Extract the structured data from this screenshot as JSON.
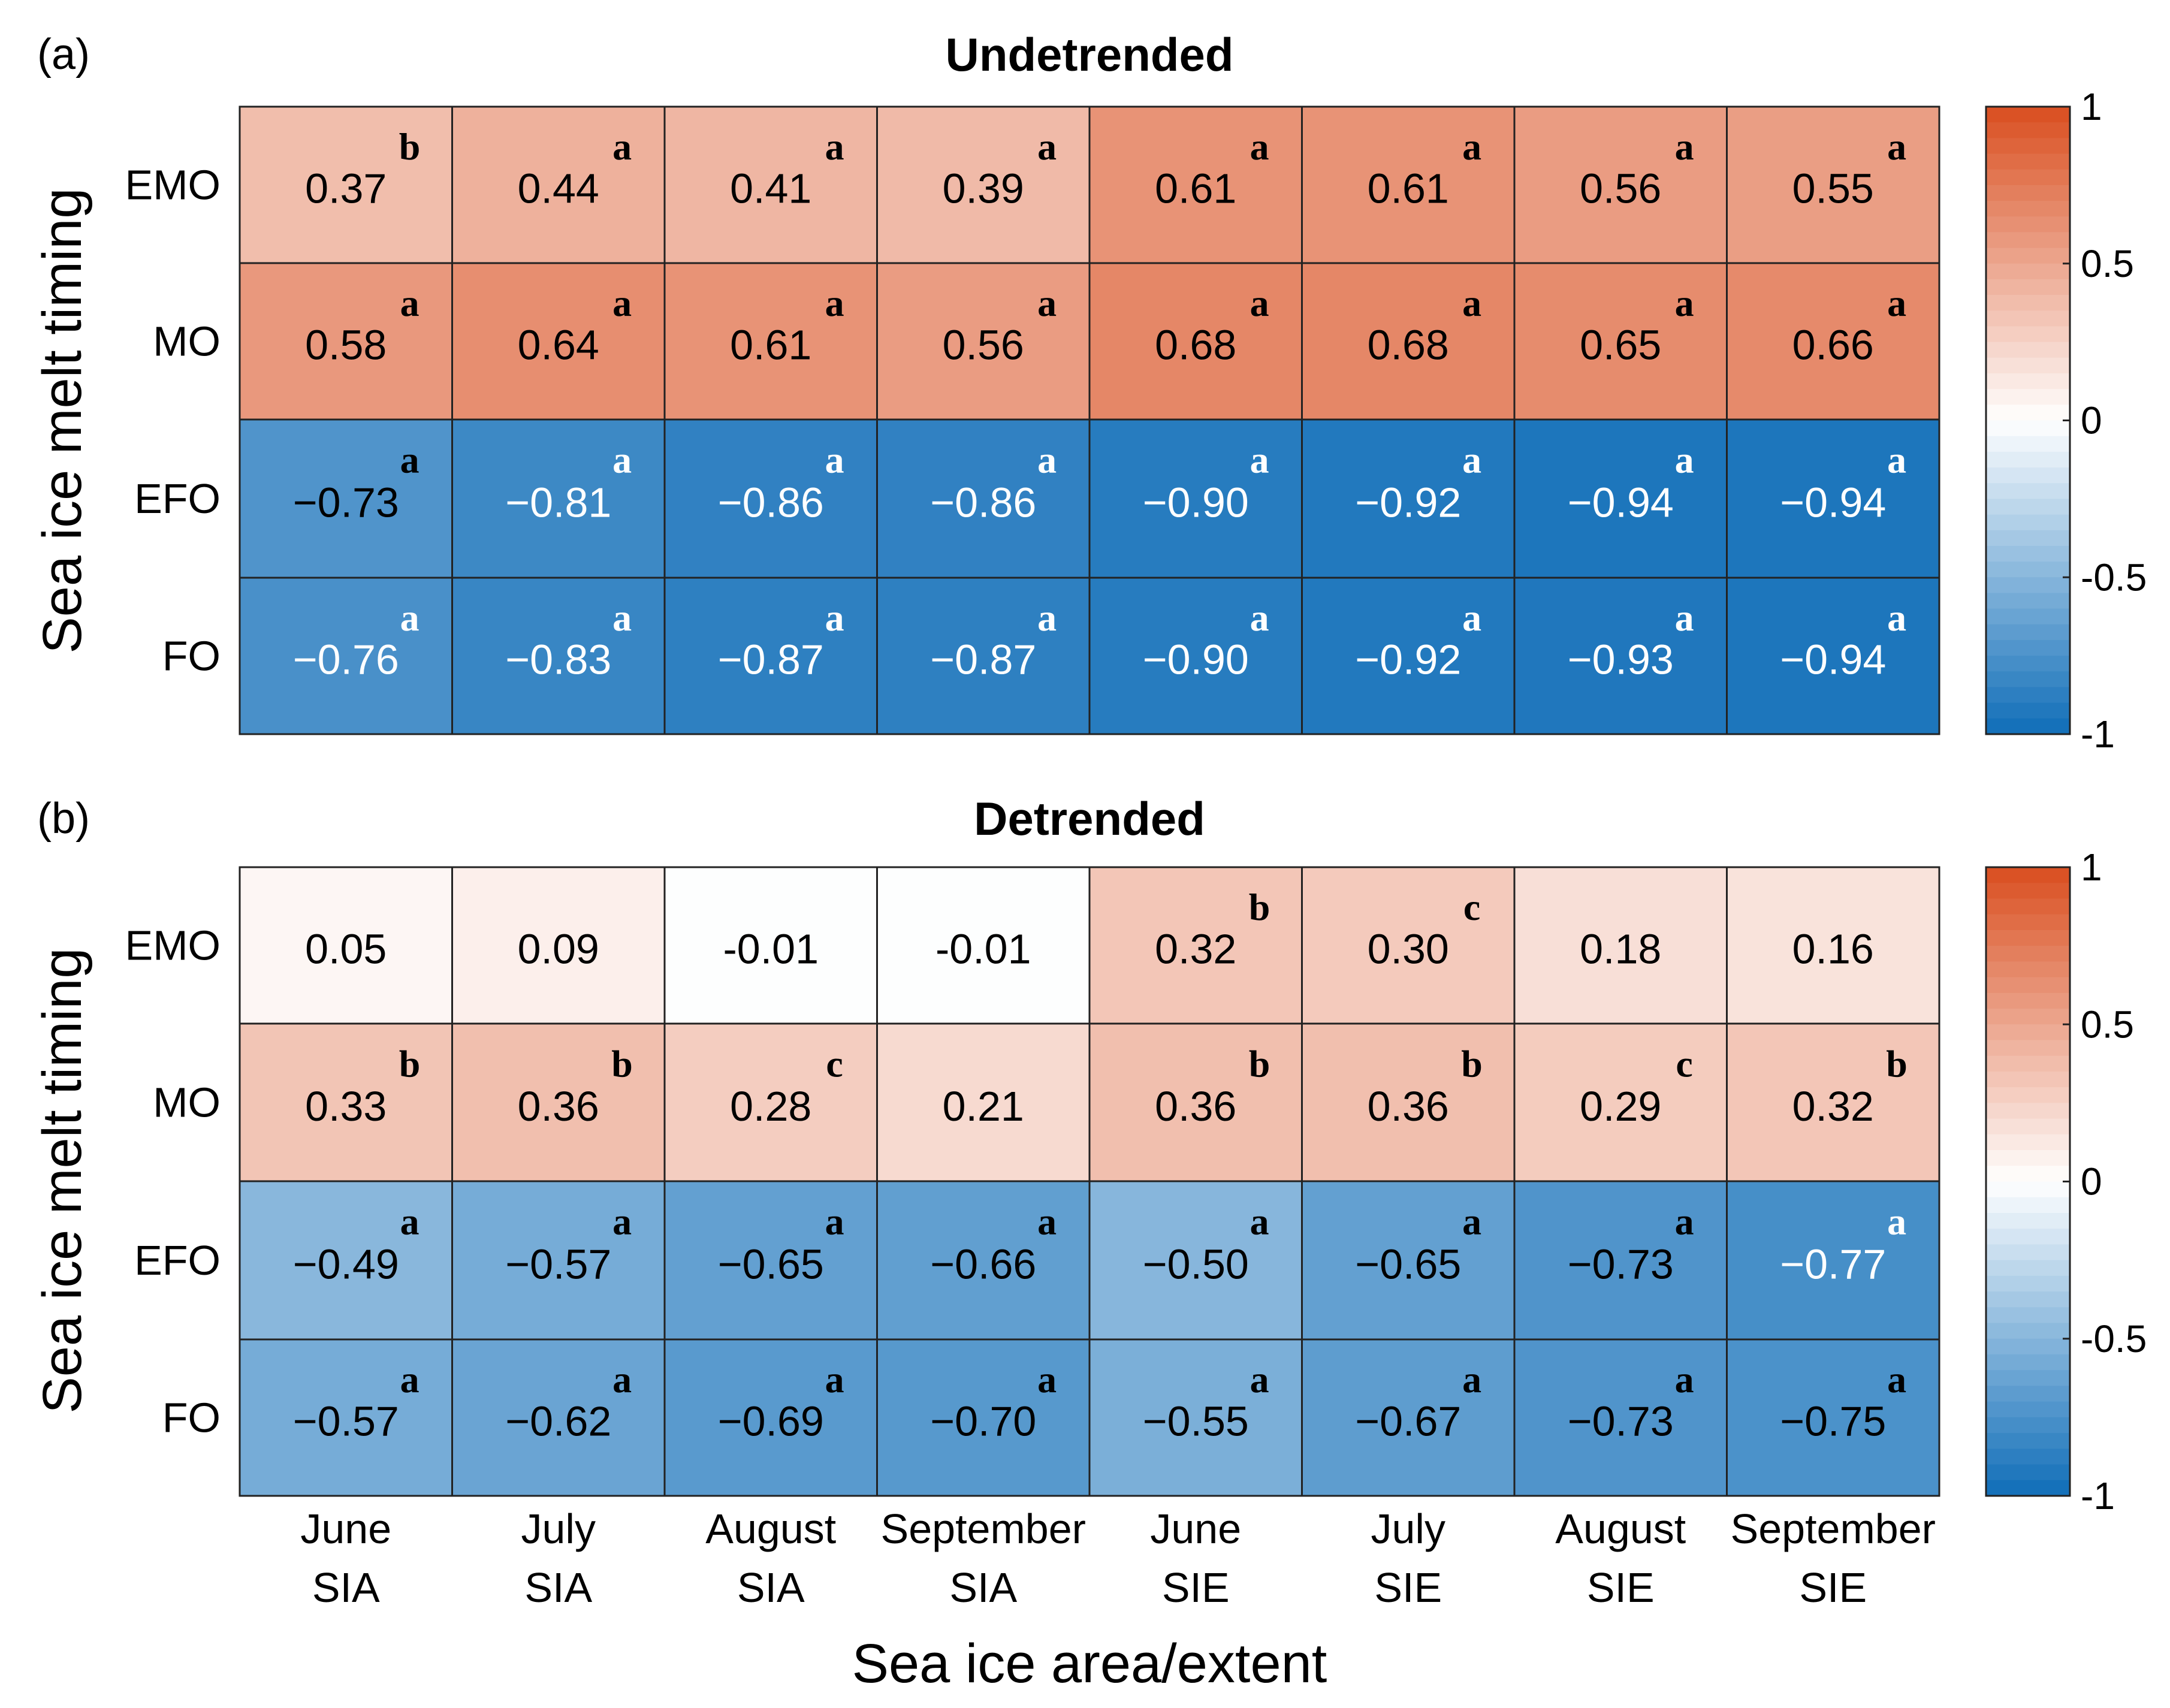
{
  "chart_data": [
    {
      "type": "heatmap",
      "panel_label": "(a)",
      "title": "Undetrended",
      "ylabel": "Sea ice melt timing",
      "rows": [
        "EMO",
        "MO",
        "EFO",
        "FO"
      ],
      "columns": [
        {
          "month": "June",
          "var": "SIA"
        },
        {
          "month": "July",
          "var": "SIA"
        },
        {
          "month": "August",
          "var": "SIA"
        },
        {
          "month": "September",
          "var": "SIA"
        },
        {
          "month": "June",
          "var": "SIE"
        },
        {
          "month": "July",
          "var": "SIE"
        },
        {
          "month": "August",
          "var": "SIE"
        },
        {
          "month": "September",
          "var": "SIE"
        }
      ],
      "values": [
        [
          0.37,
          0.44,
          0.41,
          0.39,
          0.61,
          0.61,
          0.56,
          0.55
        ],
        [
          0.58,
          0.64,
          0.61,
          0.56,
          0.68,
          0.68,
          0.65,
          0.66
        ],
        [
          -0.73,
          -0.81,
          -0.86,
          -0.86,
          -0.9,
          -0.92,
          -0.94,
          -0.94
        ],
        [
          -0.76,
          -0.83,
          -0.87,
          -0.87,
          -0.9,
          -0.92,
          -0.93,
          -0.94
        ]
      ],
      "labels": [
        [
          "0.37",
          "0.44",
          "0.41",
          "0.39",
          "0.61",
          "0.61",
          "0.56",
          "0.55"
        ],
        [
          "0.58",
          "0.64",
          "0.61",
          "0.56",
          "0.68",
          "0.68",
          "0.65",
          "0.66"
        ],
        [
          "−0.73",
          "−0.81",
          "−0.86",
          "−0.86",
          "−0.90",
          "−0.92",
          "−0.94",
          "−0.94"
        ],
        [
          "−0.76",
          "−0.83",
          "−0.87",
          "−0.87",
          "−0.90",
          "−0.92",
          "−0.93",
          "−0.94"
        ]
      ],
      "significance": [
        [
          "b",
          "a",
          "a",
          "a",
          "a",
          "a",
          "a",
          "a"
        ],
        [
          "a",
          "a",
          "a",
          "a",
          "a",
          "a",
          "a",
          "a"
        ],
        [
          "a",
          "a",
          "a",
          "a",
          "a",
          "a",
          "a",
          "a"
        ],
        [
          "a",
          "a",
          "a",
          "a",
          "a",
          "a",
          "a",
          "a"
        ]
      ],
      "colorbar": {
        "range": [
          -1,
          1
        ],
        "ticks": [
          1,
          0.5,
          0,
          -0.5,
          -1
        ],
        "tick_labels": [
          "1",
          "0.5",
          "0",
          "-0.5",
          "-1"
        ]
      }
    },
    {
      "type": "heatmap",
      "panel_label": "(b)",
      "title": "Detrended",
      "ylabel": "Sea ice melt timing",
      "rows": [
        "EMO",
        "MO",
        "EFO",
        "FO"
      ],
      "columns": [
        {
          "month": "June",
          "var": "SIA"
        },
        {
          "month": "July",
          "var": "SIA"
        },
        {
          "month": "August",
          "var": "SIA"
        },
        {
          "month": "September",
          "var": "SIA"
        },
        {
          "month": "June",
          "var": "SIE"
        },
        {
          "month": "July",
          "var": "SIE"
        },
        {
          "month": "August",
          "var": "SIE"
        },
        {
          "month": "September",
          "var": "SIE"
        }
      ],
      "values": [
        [
          0.05,
          0.09,
          -0.01,
          -0.01,
          0.32,
          0.3,
          0.18,
          0.16
        ],
        [
          0.33,
          0.36,
          0.28,
          0.21,
          0.36,
          0.36,
          0.29,
          0.32
        ],
        [
          -0.49,
          -0.57,
          -0.65,
          -0.66,
          -0.5,
          -0.65,
          -0.73,
          -0.77
        ],
        [
          -0.57,
          -0.62,
          -0.69,
          -0.7,
          -0.55,
          -0.67,
          -0.73,
          -0.75
        ]
      ],
      "labels": [
        [
          "0.05",
          "0.09",
          "-0.01",
          "-0.01",
          "0.32",
          "0.30",
          "0.18",
          "0.16"
        ],
        [
          "0.33",
          "0.36",
          "0.28",
          "0.21",
          "0.36",
          "0.36",
          "0.29",
          "0.32"
        ],
        [
          "−0.49",
          "−0.57",
          "−0.65",
          "−0.66",
          "−0.50",
          "−0.65",
          "−0.73",
          "−0.77"
        ],
        [
          "−0.57",
          "−0.62",
          "−0.69",
          "−0.70",
          "−0.55",
          "−0.67",
          "−0.73",
          "−0.75"
        ]
      ],
      "significance": [
        [
          "",
          "",
          "",
          "",
          "b",
          "c",
          "",
          ""
        ],
        [
          "b",
          "b",
          "c",
          "",
          "b",
          "b",
          "c",
          "b"
        ],
        [
          "a",
          "a",
          "a",
          "a",
          "a",
          "a",
          "a",
          "a"
        ],
        [
          "a",
          "a",
          "a",
          "a",
          "a",
          "a",
          "a",
          "a"
        ]
      ],
      "colorbar": {
        "range": [
          -1,
          1
        ],
        "ticks": [
          1,
          0.5,
          0,
          -0.5,
          -1
        ],
        "tick_labels": [
          "1",
          "0.5",
          "0",
          "-0.5",
          "-1"
        ]
      }
    }
  ],
  "xlabel": "Sea ice area/extent",
  "colors": {
    "positive_max": "#d94e1f",
    "negative_max": "#0f6db8",
    "neutral": "#ffffff",
    "grid_line": "#222222",
    "dark_text": "#000000",
    "light_text": "#ffffff"
  }
}
